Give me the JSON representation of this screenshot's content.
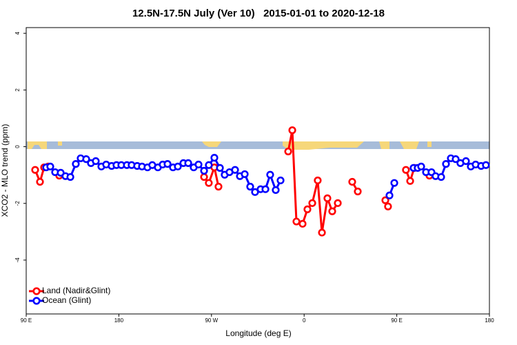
{
  "chart_data": {
    "type": "line",
    "title": "12.5N-17.5N July (Ver 10)   2015-01-01 to 2020-12-18",
    "x_label": "Longitude (deg E)",
    "y_label": "XCO2 - MLO trend (ppm)",
    "xlim": [
      90,
      540
    ],
    "xticks": [
      {
        "value": 90,
        "label": "90 E"
      },
      {
        "value": 180,
        "label": "180"
      },
      {
        "value": 270,
        "label": "90 W"
      },
      {
        "value": 360,
        "label": "0"
      },
      {
        "value": 450,
        "label": "90 E"
      },
      {
        "value": 540,
        "label": "180"
      }
    ],
    "ylim": [
      -5.9,
      4.2
    ],
    "yticks": [
      -4,
      -2,
      0,
      2,
      4
    ],
    "legend": "bottom-left",
    "series": [
      {
        "name": "Land (Nadir&Glint)",
        "color": "#ff0000",
        "x": [
          98.7,
          103.4,
          107.4,
          111.4,
          null,
          122.1,
          null,
          262.8,
          267.4,
          272.8,
          276.8,
          null,
          344.5,
          348.5,
          352.5,
          358.5,
          363.2,
          367.9,
          373.2,
          377.3,
          382.6,
          387.3,
          392.7,
          null,
          406.7,
          412.1,
          null,
          438.9,
          441.5,
          null,
          458.9,
          463.0,
          467.0,
          null,
          481.7
        ],
        "values": [
          -0.82,
          -1.24,
          -0.73,
          -0.7,
          null,
          -1.02,
          null,
          -1.07,
          -1.28,
          -0.73,
          -1.41,
          null,
          -0.17,
          0.58,
          -2.64,
          -2.72,
          -2.21,
          -1.99,
          -1.19,
          -3.03,
          -1.82,
          -2.28,
          -1.99,
          null,
          -1.24,
          -1.58,
          null,
          -1.89,
          -2.11,
          null,
          -0.82,
          -1.21,
          -0.75,
          null,
          -1.02
        ]
      },
      {
        "name": "Ocean (Glint)",
        "color": "#0000ff",
        "x": [
          109.4,
          113.4,
          118.1,
          123.5,
          128.2,
          132.9,
          138.2,
          142.9,
          148.3,
          152.9,
          157.6,
          163.0,
          167.7,
          173.0,
          177.7,
          182.4,
          187.8,
          192.4,
          197.8,
          202.5,
          207.8,
          212.5,
          217.9,
          222.6,
          227.3,
          232.6,
          237.3,
          242.7,
          247.4,
          252.7,
          257.4,
          262.8,
          267.4,
          272.8,
          278.2,
          282.8,
          287.5,
          292.9,
          297.6,
          302.3,
          307.6,
          312.3,
          317.7,
          322.4,
          327.0,
          332.4,
          337.1,
          null,
          442.9,
          447.6,
          null,
          466.3,
          470.3,
          473.7,
          478.4,
          483.7,
          487.7,
          493.1,
          497.8,
          502.5,
          507.2,
          511.8,
          517.2,
          521.9,
          526.6,
          531.9,
          536.6
        ],
        "values": [
          -0.73,
          -0.7,
          -0.9,
          -0.92,
          -1.04,
          -1.07,
          -0.61,
          -0.41,
          -0.44,
          -0.58,
          -0.51,
          -0.7,
          -0.63,
          -0.68,
          -0.65,
          -0.65,
          -0.65,
          -0.65,
          -0.68,
          -0.7,
          -0.73,
          -0.65,
          -0.73,
          -0.63,
          -0.61,
          -0.73,
          -0.7,
          -0.58,
          -0.58,
          -0.73,
          -0.63,
          -0.85,
          -0.65,
          -0.39,
          -0.75,
          -0.99,
          -0.9,
          -0.82,
          -1.04,
          -0.97,
          -1.41,
          -1.6,
          -1.5,
          -1.5,
          -0.99,
          -1.53,
          -1.19,
          null,
          -1.72,
          -1.28,
          null,
          -0.75,
          -0.75,
          -0.7,
          -0.9,
          -0.9,
          -1.04,
          -1.07,
          -0.61,
          -0.41,
          -0.44,
          -0.58,
          -0.51,
          -0.7,
          -0.63,
          -0.68,
          -0.65
        ]
      }
    ]
  }
}
